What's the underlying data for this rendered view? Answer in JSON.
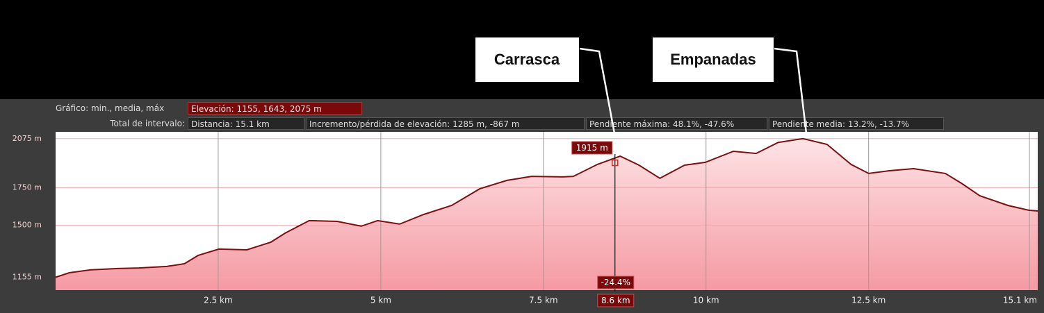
{
  "header": {
    "chart_label": "Gráfico: min., media, máx",
    "elevation": "Elevación: 1155, 1643, 2075 m",
    "range_label": "Total de intervalo:",
    "distance": "Distancia: 15.1 km",
    "gain_loss": "Incremento/pérdida de elevación: 1285 m, -867 m",
    "max_slope": "Pendiente máxima: 48.1%, -47.6%",
    "mean_slope": "Pendiente media: 13.2%, -13.7%"
  },
  "callouts": [
    {
      "label": "Carrasca"
    },
    {
      "label": "Empanadas"
    }
  ],
  "chart_data": {
    "type": "area",
    "color": "#7a1010",
    "x": [
      0,
      0.21,
      0.53,
      0.96,
      1.28,
      1.71,
      1.98,
      2.19,
      2.51,
      2.94,
      3.31,
      3.53,
      3.9,
      4.33,
      4.7,
      4.95,
      5.29,
      5.66,
      6.09,
      6.52,
      6.94,
      7.32,
      7.8,
      7.96,
      8.33,
      8.68,
      8.97,
      9.29,
      9.67,
      9.99,
      10.42,
      10.77,
      11.11,
      11.49,
      11.86,
      12.23,
      12.5,
      12.82,
      13.19,
      13.68,
      13.94,
      14.21,
      14.64,
      14.96,
      15.1
    ],
    "values": [
      1155,
      1185,
      1204,
      1213,
      1217,
      1227,
      1245,
      1300,
      1342,
      1337,
      1388,
      1448,
      1531,
      1526,
      1494,
      1531,
      1508,
      1572,
      1632,
      1742,
      1798,
      1825,
      1821,
      1825,
      1904,
      1959,
      1899,
      1812,
      1899,
      1918,
      1991,
      1977,
      2050,
      2075,
      2037,
      1904,
      1844,
      1862,
      1876,
      1844,
      1775,
      1696,
      1632,
      1600,
      1595
    ],
    "xlim": [
      0,
      15.1
    ],
    "ylim": [
      1070,
      2120
    ],
    "xticks": [
      {
        "value": 2.5,
        "label": "2.5 km"
      },
      {
        "value": 5,
        "label": "5 km"
      },
      {
        "value": 7.5,
        "label": "7.5 km"
      },
      {
        "value": 10,
        "label": "10 km"
      },
      {
        "value": 12.5,
        "label": "12.5 km"
      },
      {
        "value": 15.1,
        "label": "15.1 km"
      }
    ],
    "yticks": [
      {
        "value": 1155,
        "label": "1155 m"
      },
      {
        "value": 1500,
        "label": "1500 m"
      },
      {
        "value": 1750,
        "label": "1750 m"
      },
      {
        "value": 2075,
        "label": "2075 m"
      }
    ],
    "grid": true,
    "cursor": {
      "x": 8.6,
      "x_label": "8.6 km",
      "value": 1915,
      "value_label": "1915 m",
      "slope_label": "-24.4%"
    }
  }
}
